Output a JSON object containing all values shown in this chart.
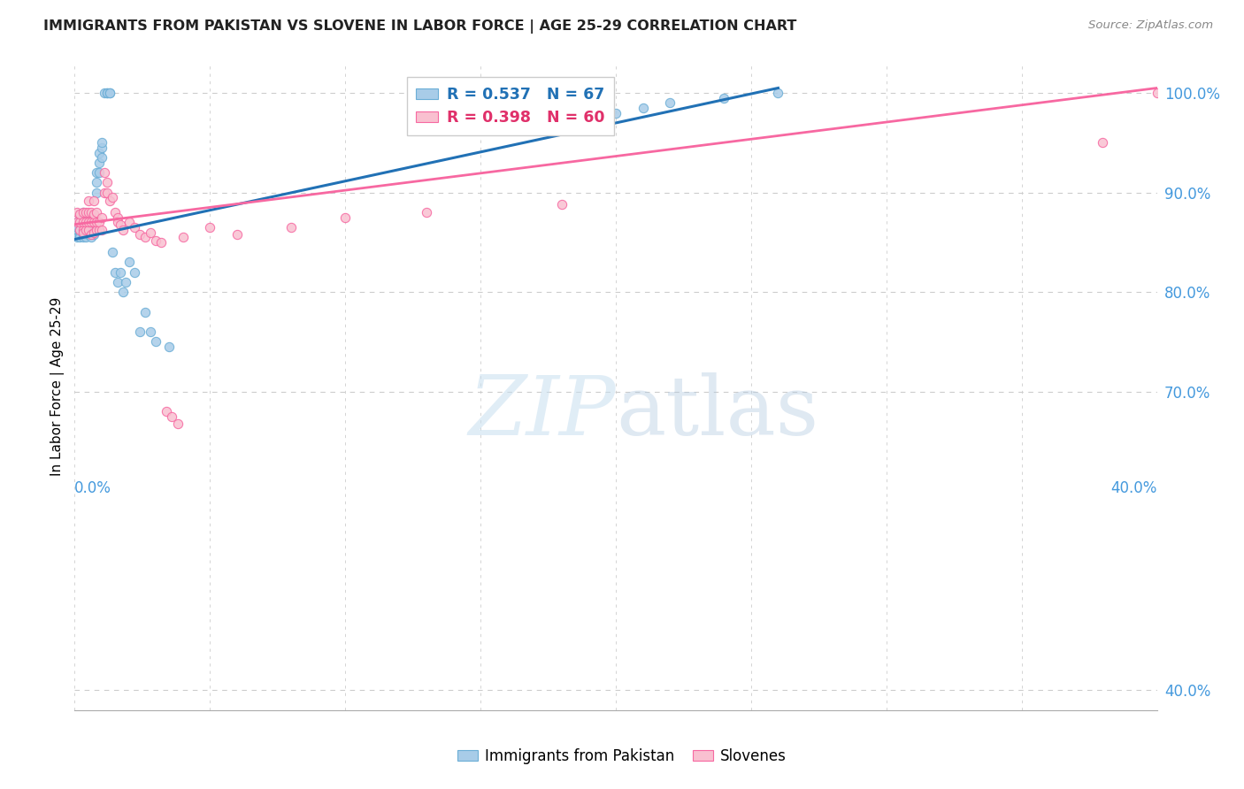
{
  "title": "IMMIGRANTS FROM PAKISTAN VS SLOVENE IN LABOR FORCE | AGE 25-29 CORRELATION CHART",
  "source": "Source: ZipAtlas.com",
  "ylabel": "In Labor Force | Age 25-29",
  "ytick_labels": [
    "40.0%",
    "70.0%",
    "80.0%",
    "90.0%",
    "100.0%"
  ],
  "ytick_vals": [
    0.4,
    0.7,
    0.8,
    0.9,
    1.0
  ],
  "xlim": [
    0.0,
    0.4
  ],
  "ylim": [
    0.38,
    1.03
  ],
  "legend_label1": "Immigrants from Pakistan",
  "legend_label2": "Slovenes",
  "legend_r1_text": "R = 0.537   N = 67",
  "legend_r2_text": "R = 0.398   N = 60",
  "pakistan_fill": "#a8cce8",
  "pakistan_edge": "#6baed6",
  "slovene_fill": "#f9c0d0",
  "slovene_edge": "#f768a1",
  "pakistan_line": "#2171b5",
  "slovene_line": "#f768a1",
  "grid_color": "#cccccc",
  "watermark_color": "#c8dff0",
  "title_color": "#222222",
  "source_color": "#888888",
  "tick_color": "#4499dd",
  "pakistan_x": [
    0.001,
    0.001,
    0.001,
    0.001,
    0.002,
    0.002,
    0.002,
    0.002,
    0.002,
    0.003,
    0.003,
    0.003,
    0.003,
    0.003,
    0.003,
    0.003,
    0.004,
    0.004,
    0.004,
    0.004,
    0.004,
    0.005,
    0.005,
    0.005,
    0.005,
    0.005,
    0.006,
    0.006,
    0.006,
    0.006,
    0.006,
    0.007,
    0.007,
    0.007,
    0.007,
    0.008,
    0.008,
    0.008,
    0.009,
    0.009,
    0.009,
    0.01,
    0.01,
    0.01,
    0.011,
    0.012,
    0.012,
    0.013,
    0.013,
    0.014,
    0.015,
    0.016,
    0.017,
    0.018,
    0.019,
    0.02,
    0.022,
    0.024,
    0.026,
    0.028,
    0.03,
    0.035,
    0.2,
    0.21,
    0.22,
    0.24,
    0.26
  ],
  "pakistan_y": [
    0.86,
    0.855,
    0.87,
    0.865,
    0.858,
    0.862,
    0.855,
    0.87,
    0.878,
    0.855,
    0.86,
    0.87,
    0.88,
    0.862,
    0.858,
    0.865,
    0.855,
    0.862,
    0.868,
    0.87,
    0.875,
    0.858,
    0.865,
    0.87,
    0.862,
    0.875,
    0.855,
    0.86,
    0.87,
    0.862,
    0.875,
    0.858,
    0.862,
    0.87,
    0.875,
    0.9,
    0.91,
    0.92,
    0.93,
    0.94,
    0.92,
    0.945,
    0.935,
    0.95,
    1.0,
    1.0,
    1.0,
    1.0,
    1.0,
    0.84,
    0.82,
    0.81,
    0.82,
    0.8,
    0.81,
    0.83,
    0.82,
    0.76,
    0.78,
    0.76,
    0.75,
    0.745,
    0.98,
    0.985,
    0.99,
    0.995,
    1.0
  ],
  "slovene_x": [
    0.001,
    0.001,
    0.002,
    0.002,
    0.002,
    0.003,
    0.003,
    0.003,
    0.003,
    0.004,
    0.004,
    0.004,
    0.005,
    0.005,
    0.005,
    0.005,
    0.006,
    0.006,
    0.006,
    0.007,
    0.007,
    0.007,
    0.007,
    0.008,
    0.008,
    0.008,
    0.009,
    0.009,
    0.01,
    0.01,
    0.011,
    0.011,
    0.012,
    0.012,
    0.013,
    0.014,
    0.015,
    0.016,
    0.016,
    0.017,
    0.018,
    0.02,
    0.022,
    0.024,
    0.026,
    0.028,
    0.03,
    0.032,
    0.034,
    0.036,
    0.038,
    0.04,
    0.05,
    0.06,
    0.08,
    0.1,
    0.13,
    0.18,
    0.38,
    0.4
  ],
  "slovene_y": [
    0.87,
    0.88,
    0.862,
    0.87,
    0.878,
    0.862,
    0.87,
    0.88,
    0.86,
    0.862,
    0.87,
    0.88,
    0.862,
    0.87,
    0.88,
    0.892,
    0.858,
    0.87,
    0.88,
    0.86,
    0.87,
    0.878,
    0.892,
    0.862,
    0.87,
    0.88,
    0.862,
    0.87,
    0.862,
    0.875,
    0.92,
    0.9,
    0.91,
    0.9,
    0.892,
    0.895,
    0.88,
    0.875,
    0.87,
    0.868,
    0.862,
    0.87,
    0.865,
    0.858,
    0.855,
    0.86,
    0.852,
    0.85,
    0.68,
    0.675,
    0.668,
    0.855,
    0.865,
    0.858,
    0.865,
    0.875,
    0.88,
    0.888,
    0.95,
    1.0
  ]
}
